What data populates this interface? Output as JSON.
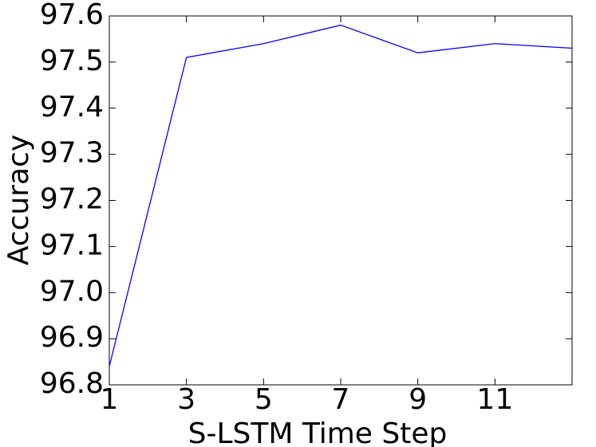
{
  "chart_data": {
    "type": "line",
    "x_label": "S-LSTM Time Step",
    "y_label": "Accuracy",
    "x": [
      1,
      3,
      5,
      7,
      9,
      11,
      13
    ],
    "series": [
      {
        "name": "Accuracy",
        "color": "#0000ff",
        "values": [
          96.84,
          97.51,
          97.54,
          97.58,
          97.52,
          97.54,
          97.53
        ]
      }
    ],
    "xlim": [
      1,
      13
    ],
    "xticks": [
      1,
      3,
      5,
      7,
      9,
      11
    ],
    "ylim": [
      96.8,
      97.6
    ],
    "yticks": [
      96.8,
      96.9,
      {
        "value": 97.0,
        "label": "97.0"
      },
      97.1,
      97.2,
      97.3,
      97.4,
      97.5,
      97.6
    ],
    "grid": false
  }
}
